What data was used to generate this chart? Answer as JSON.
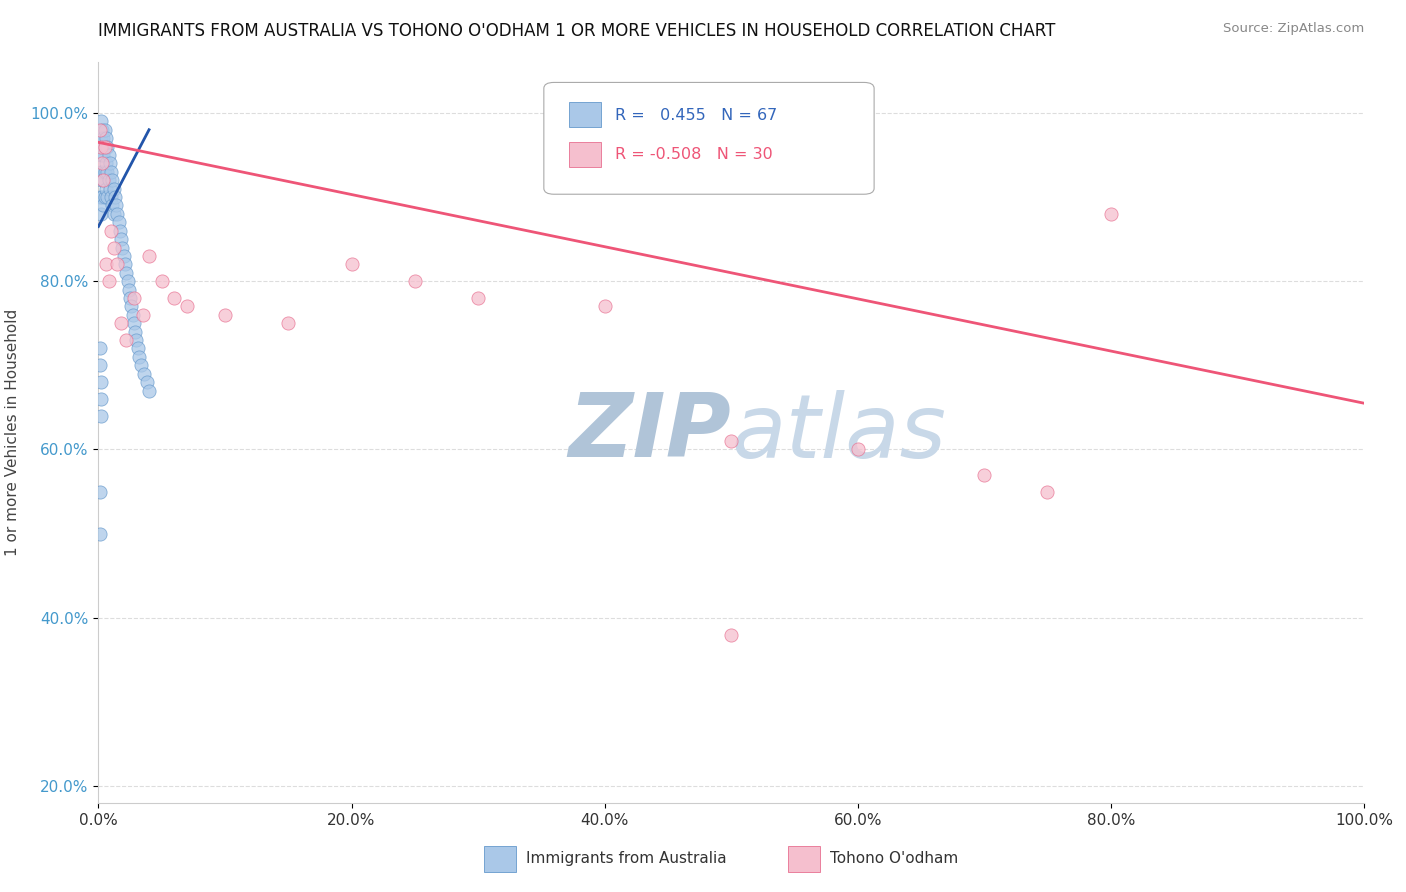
{
  "title": "IMMIGRANTS FROM AUSTRALIA VS TOHONO O'ODHAM 1 OR MORE VEHICLES IN HOUSEHOLD CORRELATION CHART",
  "source": "Source: ZipAtlas.com",
  "ylabel": "1 or more Vehicles in Household",
  "blue_R": 0.455,
  "blue_N": 67,
  "pink_R": -0.508,
  "pink_N": 30,
  "blue_color": "#aac8e8",
  "blue_edge": "#6699cc",
  "pink_color": "#f5bfce",
  "pink_edge": "#e87090",
  "blue_line_color": "#2255aa",
  "pink_line_color": "#ee5577",
  "watermark_zip": "ZIP",
  "watermark_atlas": "atlas",
  "watermark_color": "#c8d8e8",
  "grid_color": "#dddddd",
  "legend_blue_label": "Immigrants from Australia",
  "legend_pink_label": "Tohono O'odham",
  "marker_size": 90,
  "blue_x": [
    0.001,
    0.001,
    0.001,
    0.002,
    0.002,
    0.002,
    0.002,
    0.002,
    0.003,
    0.003,
    0.003,
    0.003,
    0.004,
    0.004,
    0.004,
    0.004,
    0.005,
    0.005,
    0.005,
    0.005,
    0.006,
    0.006,
    0.006,
    0.007,
    0.007,
    0.007,
    0.008,
    0.008,
    0.009,
    0.009,
    0.01,
    0.01,
    0.011,
    0.011,
    0.012,
    0.012,
    0.013,
    0.014,
    0.015,
    0.016,
    0.017,
    0.018,
    0.019,
    0.02,
    0.021,
    0.022,
    0.023,
    0.024,
    0.025,
    0.026,
    0.027,
    0.028,
    0.029,
    0.03,
    0.031,
    0.032,
    0.034,
    0.036,
    0.038,
    0.04,
    0.001,
    0.001,
    0.002,
    0.002,
    0.002,
    0.001,
    0.001
  ],
  "blue_y": [
    0.96,
    0.93,
    0.9,
    0.99,
    0.97,
    0.95,
    0.92,
    0.88,
    0.98,
    0.96,
    0.93,
    0.9,
    0.97,
    0.95,
    0.92,
    0.89,
    0.98,
    0.96,
    0.93,
    0.9,
    0.97,
    0.94,
    0.91,
    0.96,
    0.93,
    0.9,
    0.95,
    0.92,
    0.94,
    0.91,
    0.93,
    0.9,
    0.92,
    0.89,
    0.91,
    0.88,
    0.9,
    0.89,
    0.88,
    0.87,
    0.86,
    0.85,
    0.84,
    0.83,
    0.82,
    0.81,
    0.8,
    0.79,
    0.78,
    0.77,
    0.76,
    0.75,
    0.74,
    0.73,
    0.72,
    0.71,
    0.7,
    0.69,
    0.68,
    0.67,
    0.72,
    0.7,
    0.68,
    0.66,
    0.64,
    0.55,
    0.5
  ],
  "pink_x": [
    0.001,
    0.002,
    0.003,
    0.004,
    0.005,
    0.006,
    0.008,
    0.01,
    0.012,
    0.015,
    0.018,
    0.022,
    0.028,
    0.035,
    0.04,
    0.05,
    0.06,
    0.07,
    0.1,
    0.15,
    0.2,
    0.25,
    0.3,
    0.4,
    0.5,
    0.6,
    0.7,
    0.8,
    0.5,
    0.75
  ],
  "pink_y": [
    0.98,
    0.96,
    0.94,
    0.92,
    0.96,
    0.82,
    0.8,
    0.86,
    0.84,
    0.82,
    0.75,
    0.73,
    0.78,
    0.76,
    0.83,
    0.8,
    0.78,
    0.77,
    0.76,
    0.75,
    0.82,
    0.8,
    0.78,
    0.77,
    0.61,
    0.6,
    0.57,
    0.88,
    0.38,
    0.55
  ],
  "blue_line_x0": 0.0,
  "blue_line_x1": 0.04,
  "blue_line_y0": 0.865,
  "blue_line_y1": 0.98,
  "pink_line_x0": 0.0,
  "pink_line_x1": 1.0,
  "pink_line_y0": 0.965,
  "pink_line_y1": 0.655,
  "ytick_vals": [
    0.2,
    0.4,
    0.6,
    0.8,
    1.0
  ],
  "ytick_labels": [
    "20.0%",
    "40.0%",
    "60.0%",
    "80.0%",
    "100.0%"
  ],
  "xtick_vals": [
    0.0,
    0.2,
    0.4,
    0.6,
    0.8,
    1.0
  ],
  "xtick_labels": [
    "0.0%",
    "20.0%",
    "40.0%",
    "60.0%",
    "80.0%",
    "100.0%"
  ]
}
